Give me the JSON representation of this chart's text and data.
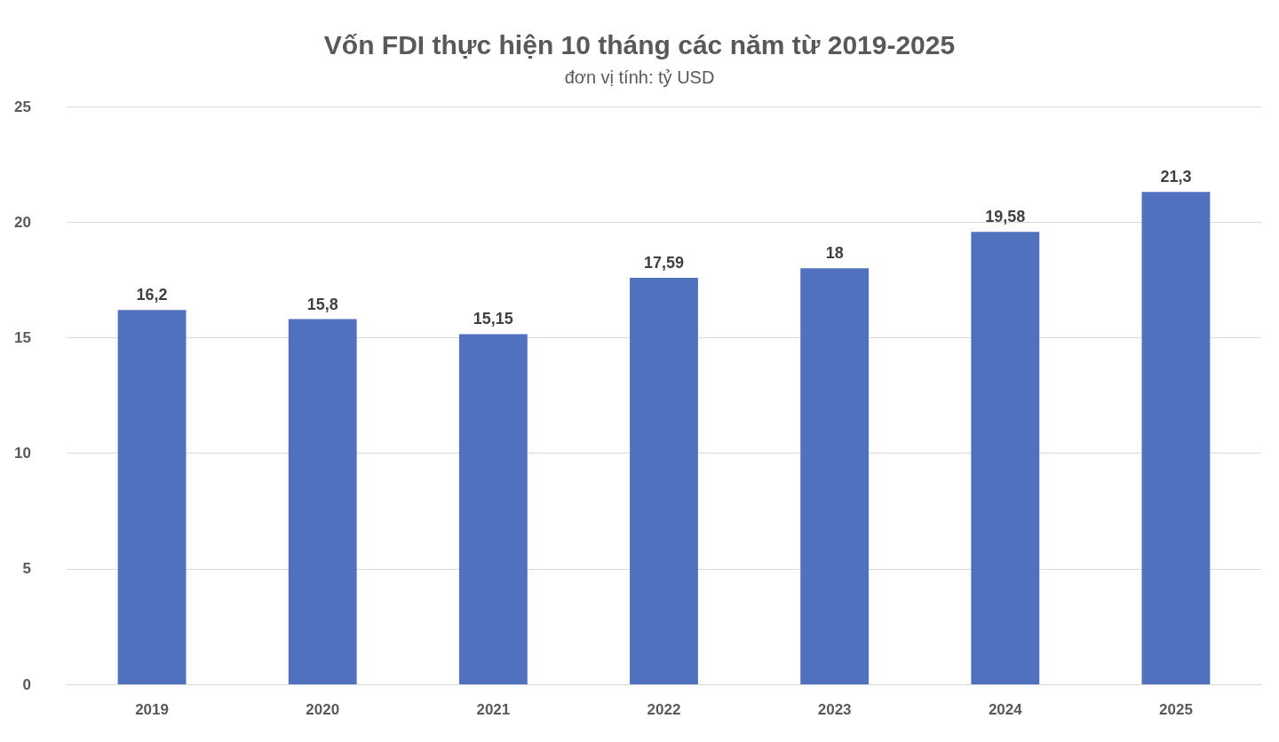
{
  "chart_data": {
    "type": "bar",
    "title": "Vốn FDI thực hiện 10 tháng các năm từ 2019-2025",
    "subtitle": "đơn vị tính: tỷ USD",
    "categories": [
      "2019",
      "2020",
      "2021",
      "2022",
      "2023",
      "2024",
      "2025"
    ],
    "values": [
      16.2,
      15.8,
      15.15,
      17.59,
      18,
      19.58,
      21.3
    ],
    "value_labels": [
      "16,2",
      "15,8",
      "15,15",
      "17,59",
      "18",
      "19,58",
      "21,3"
    ],
    "color": "#4f71be",
    "ylim": [
      0,
      25
    ],
    "yticks": [
      0,
      5,
      10,
      15,
      20,
      25
    ],
    "grid": "y"
  }
}
